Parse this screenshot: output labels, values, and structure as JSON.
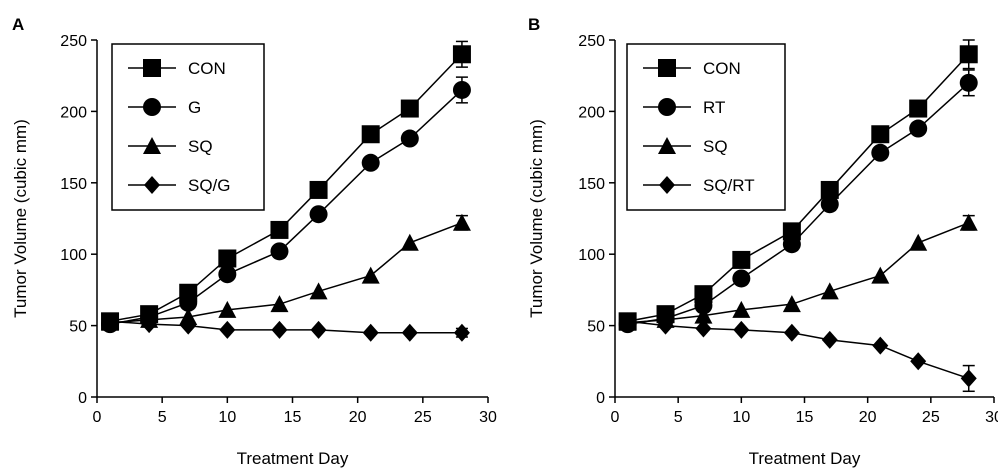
{
  "chart_data": [
    {
      "type": "line",
      "panel_label": "A",
      "xlabel": "Treatment Day",
      "ylabel": "Tumor Volume (cubic mm)",
      "xlim": [
        0,
        30
      ],
      "ylim": [
        0,
        250
      ],
      "xticks": [
        0,
        5,
        10,
        15,
        20,
        25,
        30
      ],
      "yticks": [
        0,
        50,
        100,
        150,
        200,
        250
      ],
      "grid": false,
      "legend_position": "top-left",
      "x": [
        1,
        4,
        7,
        10,
        14,
        17,
        21,
        24,
        28
      ],
      "series": [
        {
          "name": "CON",
          "marker": "square",
          "values": [
            53,
            58,
            73,
            97,
            117,
            145,
            184,
            202,
            240
          ],
          "error": [
            0,
            0,
            0,
            0,
            0,
            0,
            0,
            0,
            9
          ]
        },
        {
          "name": "G",
          "marker": "circle",
          "values": [
            51,
            56,
            66,
            86,
            102,
            128,
            164,
            181,
            215
          ],
          "error": [
            0,
            0,
            0,
            0,
            0,
            0,
            0,
            0,
            9
          ]
        },
        {
          "name": "SQ",
          "marker": "triangle",
          "values": [
            52,
            54,
            56,
            61,
            65,
            74,
            85,
            108,
            122
          ],
          "error": [
            0,
            0,
            0,
            0,
            0,
            0,
            0,
            0,
            5
          ]
        },
        {
          "name": "SQ/G",
          "marker": "diamond",
          "values": [
            53,
            51,
            50,
            47,
            47,
            47,
            45,
            45,
            45
          ],
          "error": [
            0,
            0,
            0,
            0,
            0,
            0,
            0,
            0,
            3
          ]
        }
      ]
    },
    {
      "type": "line",
      "panel_label": "B",
      "xlabel": "Treatment Day",
      "ylabel": "Tumor Volume (cubic mm)",
      "xlim": [
        0,
        30
      ],
      "ylim": [
        0,
        250
      ],
      "xticks": [
        0,
        5,
        10,
        15,
        20,
        25,
        30
      ],
      "yticks": [
        0,
        50,
        100,
        150,
        200,
        250
      ],
      "grid": false,
      "legend_position": "top-left",
      "x": [
        1,
        4,
        7,
        10,
        14,
        17,
        21,
        24,
        28
      ],
      "series": [
        {
          "name": "CON",
          "marker": "square",
          "values": [
            53,
            58,
            72,
            96,
            116,
            145,
            184,
            202,
            240
          ],
          "error": [
            0,
            0,
            0,
            0,
            0,
            0,
            0,
            0,
            10
          ]
        },
        {
          "name": "RT",
          "marker": "circle",
          "values": [
            51,
            55,
            64,
            83,
            107,
            135,
            171,
            188,
            220
          ],
          "error": [
            0,
            0,
            0,
            0,
            0,
            0,
            0,
            0,
            9
          ]
        },
        {
          "name": "SQ",
          "marker": "triangle",
          "values": [
            52,
            54,
            57,
            61,
            65,
            74,
            85,
            108,
            122
          ],
          "error": [
            0,
            0,
            0,
            0,
            0,
            0,
            0,
            0,
            5
          ]
        },
        {
          "name": "SQ/RT",
          "marker": "diamond",
          "values": [
            53,
            50,
            48,
            47,
            45,
            40,
            36,
            25,
            13
          ],
          "error": [
            0,
            0,
            0,
            0,
            0,
            0,
            0,
            0,
            9
          ]
        }
      ]
    }
  ]
}
